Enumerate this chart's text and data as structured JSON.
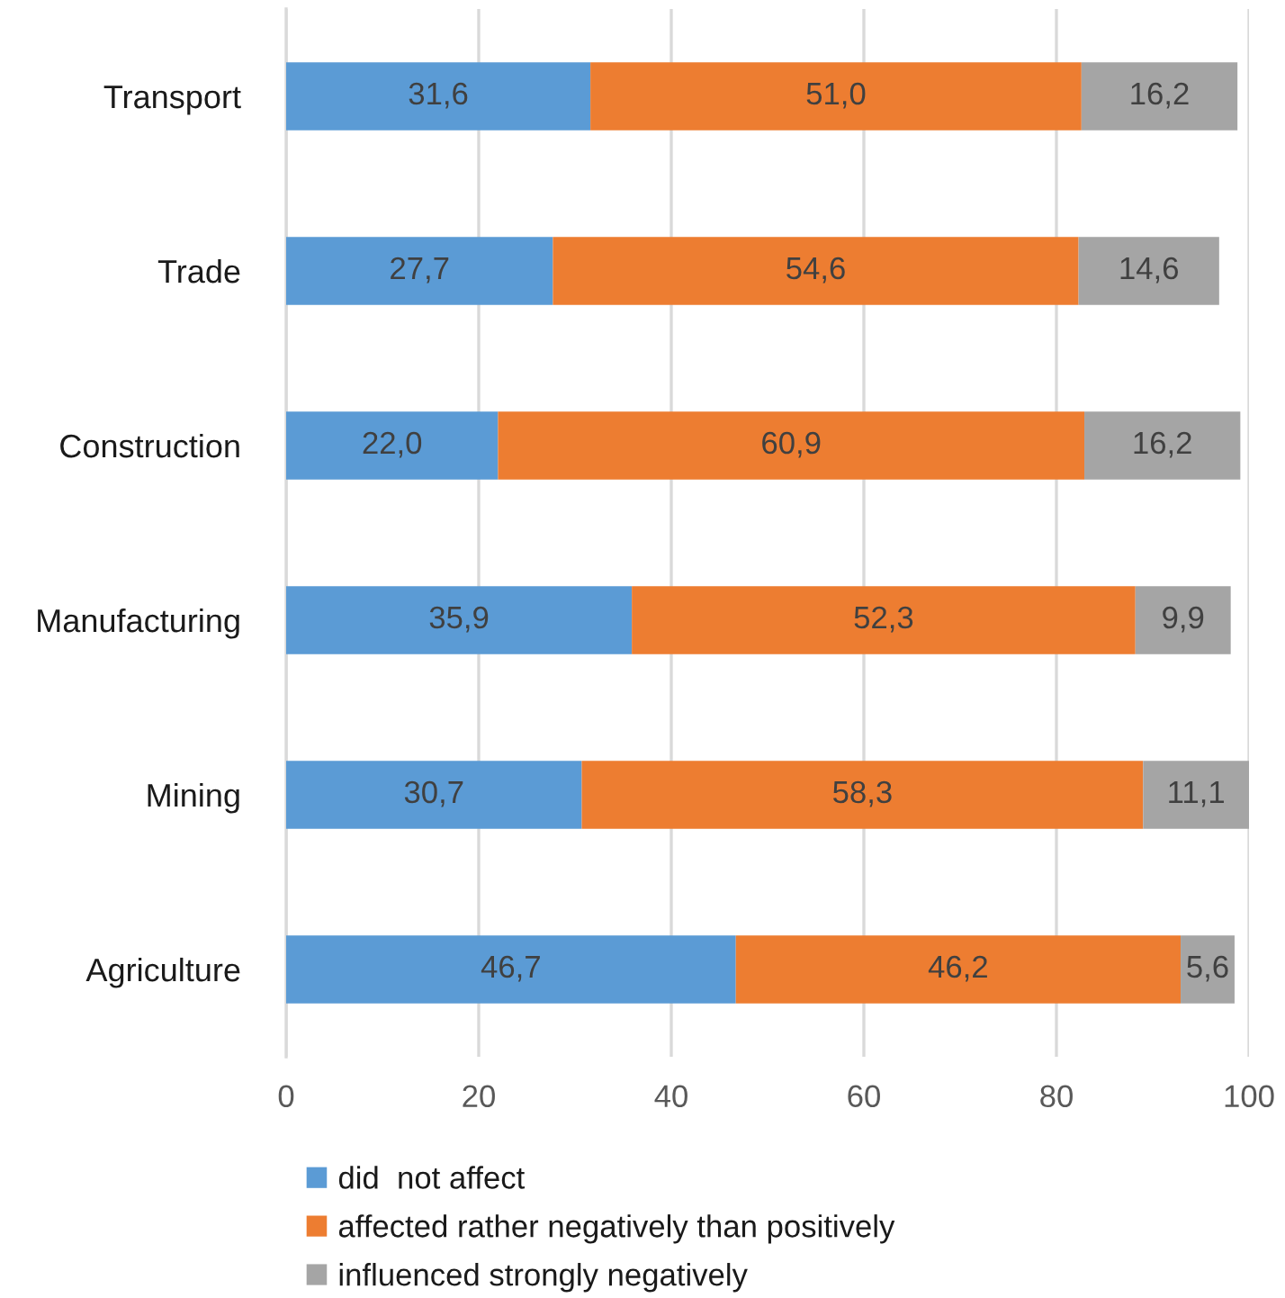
{
  "chart_data": {
    "type": "bar",
    "orientation": "horizontal",
    "stacked": true,
    "categories": [
      "Transport",
      "Trade",
      "Construction",
      "Manufacturing",
      "Mining",
      "Agriculture"
    ],
    "series": [
      {
        "name": "did  not affect",
        "color": "#5b9bd5",
        "values": [
          31.6,
          27.7,
          22.0,
          35.9,
          30.7,
          46.7
        ],
        "value_labels": [
          "31,6",
          "27,7",
          "22,0",
          "35,9",
          "30,7",
          "46,7"
        ]
      },
      {
        "name": "affected rather negatively than positively",
        "color": "#ed7d31",
        "values": [
          51.0,
          54.6,
          60.9,
          52.3,
          58.3,
          46.2
        ],
        "value_labels": [
          "51,0",
          "54,6",
          "60,9",
          "52,3",
          "58,3",
          "46,2"
        ]
      },
      {
        "name": "influenced strongly negatively",
        "color": "#a5a5a5",
        "values": [
          16.2,
          14.6,
          16.2,
          9.9,
          11.1,
          5.6
        ],
        "value_labels": [
          "16,2",
          "14,6",
          "16,2",
          "9,9",
          "11,1",
          "5,6"
        ]
      }
    ],
    "xlim": [
      0,
      100
    ],
    "xticks": [
      0,
      20,
      40,
      60,
      80,
      100
    ],
    "grid": "x",
    "legend": "bottom"
  }
}
